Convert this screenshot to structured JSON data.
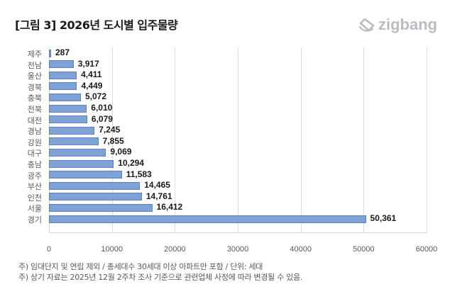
{
  "header": {
    "title": "[그림 3] 2026년 도시별 입주물량",
    "logo_text": "zigbang",
    "logo_icon": "zigbang-logo-icon"
  },
  "chart_data": {
    "type": "bar",
    "orientation": "horizontal",
    "title": "[그림 3] 2026년 도시별 입주물량",
    "xlabel": "",
    "ylabel": "",
    "categories": [
      "제주",
      "전남",
      "울산",
      "경북",
      "충북",
      "전북",
      "대전",
      "경남",
      "강원",
      "대구",
      "충남",
      "광주",
      "부산",
      "인천",
      "서울",
      "경기"
    ],
    "values": [
      287,
      3917,
      4411,
      4449,
      5072,
      6010,
      6079,
      7245,
      7855,
      9069,
      10294,
      11583,
      14465,
      14761,
      16412,
      50361
    ],
    "value_labels": [
      "287",
      "3,917",
      "4,411",
      "4,449",
      "5,072",
      "6,010",
      "6,079",
      "7,245",
      "7,855",
      "9,069",
      "10,294",
      "11,583",
      "14,465",
      "14,761",
      "16,412",
      "50,361"
    ],
    "xlim": [
      0,
      60000
    ],
    "x_ticks": [
      "0",
      "10000",
      "20000",
      "30000",
      "40000",
      "50000",
      "60000"
    ],
    "grid": true,
    "legend": null,
    "bar_color": "#7ea2d6",
    "unit": "세대"
  },
  "notes": [
    "주) 임대단지 및 연립 제외 / 총세대수 30세대 이상 아파트만 포함 / 단위: 세대",
    "주) 상기 자료는 2025년 12월 2주차 조사 기준으로 관련업체 사정에 따라 변경될 수 있음."
  ]
}
